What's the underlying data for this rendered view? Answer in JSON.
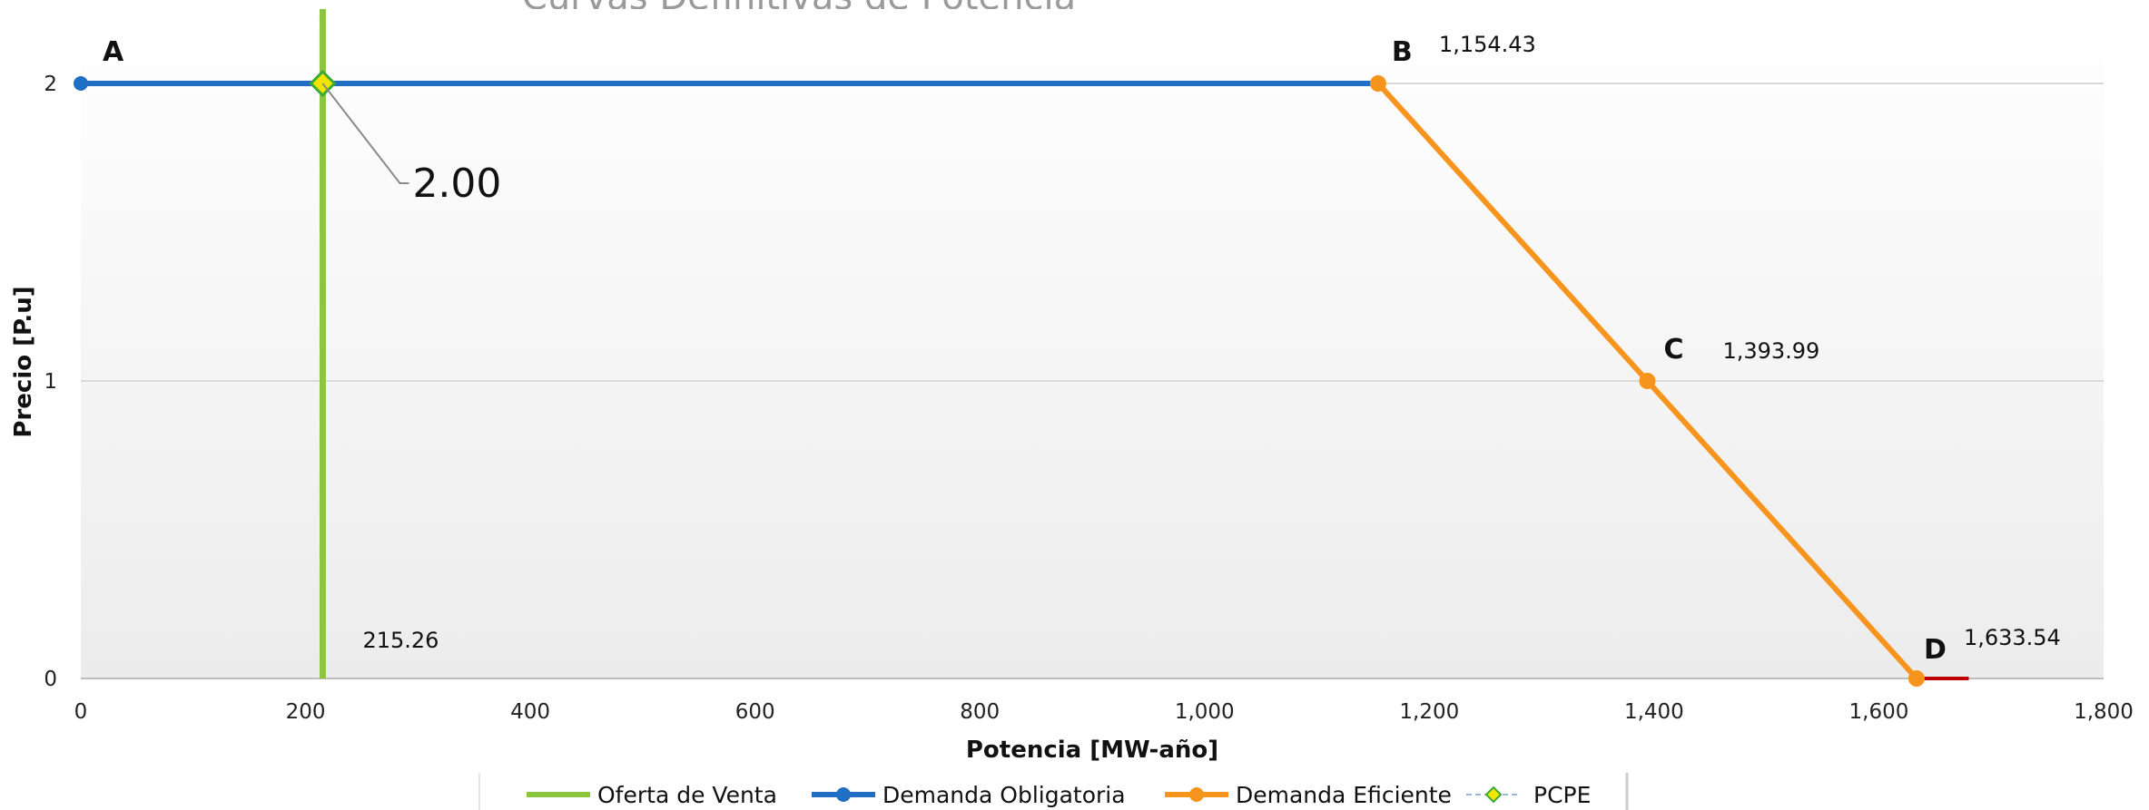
{
  "chart_data": {
    "type": "line",
    "title": "Curvas Definitivas de Potencia",
    "xlabel": "Potencia  [MW-año]",
    "ylabel": "Precio  [P.u]",
    "xlim": [
      0,
      1800
    ],
    "ylim": [
      0,
      2.25
    ],
    "xticks": [
      "0",
      "200",
      "400",
      "600",
      "800",
      "1,000",
      "1,200",
      "1,400",
      "1,600",
      "1,800"
    ],
    "xtick_values": [
      0,
      200,
      400,
      600,
      800,
      1000,
      1200,
      1400,
      1600,
      1800
    ],
    "yticks": [
      "0",
      "1",
      "2"
    ],
    "ytick_values": [
      0,
      1,
      2
    ],
    "grid": "horizontal",
    "legend_position": "bottom",
    "series": [
      {
        "name": "Oferta de Venta",
        "color": "#8cc63f",
        "points": [
          [
            215.26,
            0
          ],
          [
            215.26,
            2.25
          ]
        ],
        "marker": "none"
      },
      {
        "name": "Demanda Obligatoria",
        "color": "#1f6fc5",
        "points": [
          [
            0,
            2
          ],
          [
            1154.43,
            2
          ]
        ],
        "marker": "circle"
      },
      {
        "name": "Demanda Eficiente",
        "color": "#f7941d",
        "points": [
          [
            1154.43,
            2
          ],
          [
            1393.99,
            1
          ],
          [
            1633.54,
            0
          ]
        ],
        "marker": "circle"
      },
      {
        "name": "PCPE",
        "color": "#f2e600",
        "points": [
          [
            215.26,
            2
          ]
        ],
        "marker": "diamond"
      }
    ],
    "dashed_reference": {
      "color": "#a0b8d8",
      "points": [
        [
          0,
          2
        ],
        [
          215.26,
          2
        ]
      ]
    },
    "tail_segment": {
      "color": "#c00000",
      "points": [
        [
          1633.54,
          0
        ],
        [
          1680,
          0
        ]
      ]
    },
    "point_labels": [
      {
        "letter": "A",
        "value": "",
        "x": 0,
        "y": 2
      },
      {
        "letter": "B",
        "value": "1,154.43",
        "x": 1154.43,
        "y": 2
      },
      {
        "letter": "C",
        "value": "1,393.99",
        "x": 1393.99,
        "y": 1
      },
      {
        "letter": "D",
        "value": "1,633.54",
        "x": 1633.54,
        "y": 0
      }
    ],
    "annotations": [
      {
        "text": "2.00",
        "x": 215.26,
        "y": 2,
        "kind": "pcpe-price"
      },
      {
        "text": "215.26",
        "x": 215.26,
        "y": 0,
        "kind": "offer-quantity"
      }
    ]
  }
}
